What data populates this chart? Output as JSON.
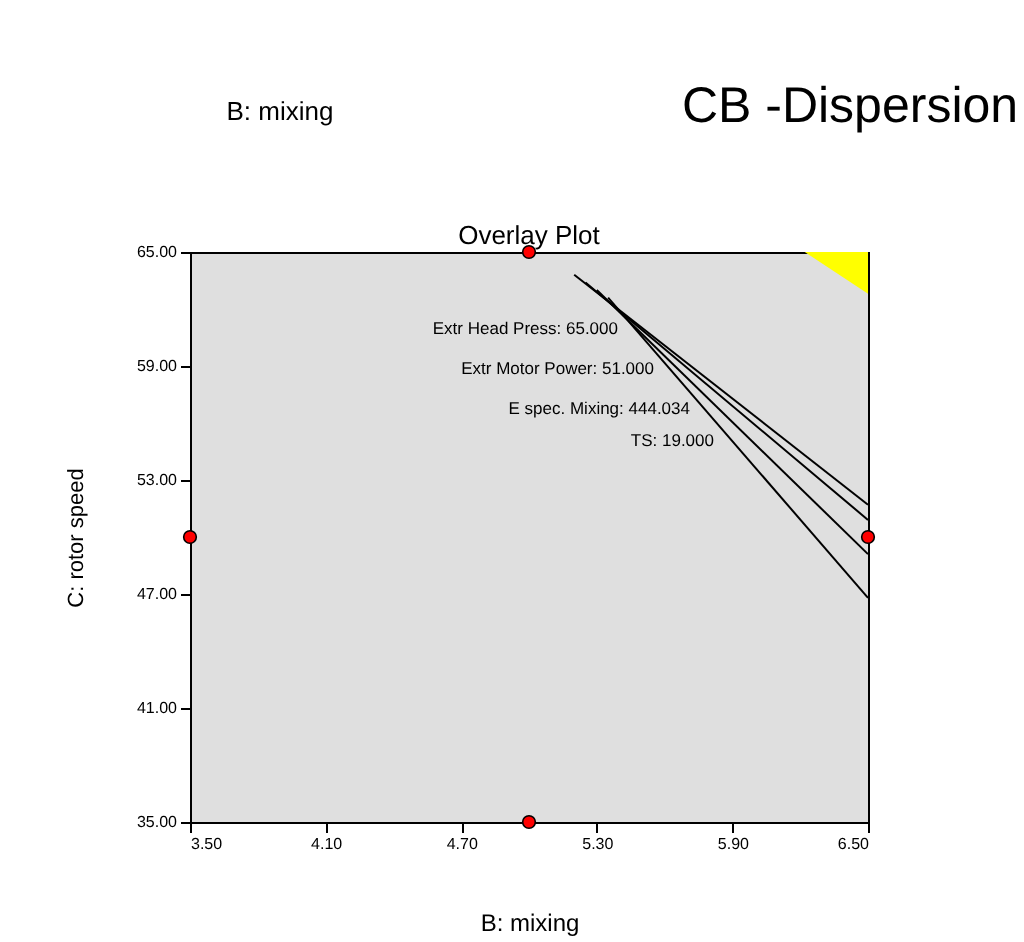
{
  "chart_data": {
    "type": "line",
    "title": "Overlay Plot",
    "xlabel": "B: mixing",
    "ylabel": "C: rotor speed",
    "xlim": [
      3.5,
      6.5
    ],
    "ylim": [
      35,
      65
    ],
    "xticks": [
      {
        "value": 3.5,
        "label": "3.50"
      },
      {
        "value": 4.1,
        "label": "4.10"
      },
      {
        "value": 4.7,
        "label": "4.70"
      },
      {
        "value": 5.3,
        "label": "5.30"
      },
      {
        "value": 5.9,
        "label": "5.90"
      },
      {
        "value": 6.5,
        "label": "6.50"
      }
    ],
    "yticks": [
      {
        "value": 35,
        "label": "35.00"
      },
      {
        "value": 41,
        "label": "41.00"
      },
      {
        "value": 47,
        "label": "47.00"
      },
      {
        "value": 53,
        "label": "53.00"
      },
      {
        "value": 59,
        "label": "59.00"
      },
      {
        "value": 65,
        "label": "65.00"
      }
    ],
    "series": [
      {
        "color": "#000000",
        "x": [
          5.2,
          6.5
        ],
        "values": [
          63.8,
          51.7
        ]
      },
      {
        "color": "#000000",
        "x": [
          5.25,
          6.5
        ],
        "values": [
          63.4,
          50.9
        ]
      },
      {
        "color": "#000000",
        "x": [
          5.3,
          6.5
        ],
        "values": [
          63.0,
          49.1
        ]
      },
      {
        "color": "#000000",
        "x": [
          5.35,
          6.5
        ],
        "values": [
          62.6,
          46.8
        ]
      },
      {
        "type": "area",
        "color": "#ffff00",
        "x": [
          6.22,
          6.5
        ],
        "values": [
          65,
          62.8
        ]
      },
      {
        "type": "scatter",
        "color": "#ff0000",
        "marker": "circle",
        "x": [
          3.5,
          5.0,
          5.0,
          6.5
        ],
        "values": [
          50,
          35,
          65,
          50
        ]
      }
    ],
    "annotations": [
      "Extr Head Press: 65.000",
      "Extr Motor Power: 51.000",
      "E spec. Mixing: 444.034",
      "TS: 19.000",
      "CB -Dispersion",
      "B: mixing"
    ]
  }
}
